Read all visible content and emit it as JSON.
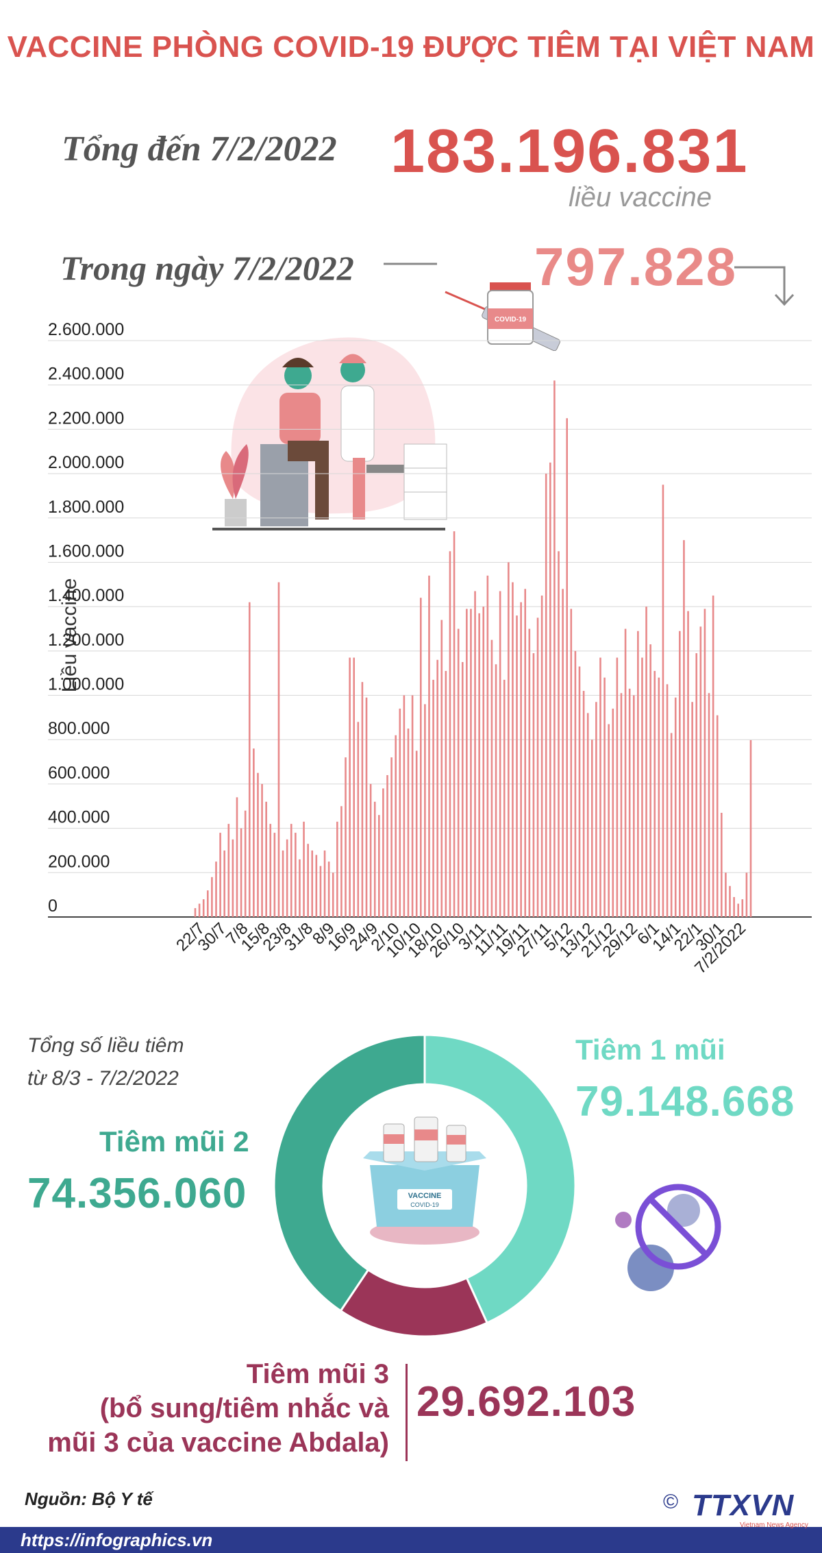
{
  "header": {
    "title": "VACCINE PHÒNG COVID-19 ĐƯỢC TIÊM TẠI VIỆT NAM",
    "total_label": "Tổng đến 7/2/2022",
    "total_value": "183.196.831",
    "total_unit": "liều vaccine",
    "day_label": "Trong ngày 7/2/2022",
    "day_value": "797.828"
  },
  "colors": {
    "title": "#d9534f",
    "bars": "#e8898a",
    "dose1": "#6fd9c4",
    "dose2": "#3ea990",
    "dose3": "#9b3558",
    "brand": "#2b3a8c"
  },
  "chart_data": {
    "type": "bar",
    "ylabel": "Liều vaccine",
    "ylim": [
      0,
      2600000
    ],
    "yticks": [
      "0",
      "200.000",
      "400.000",
      "600.000",
      "800.000",
      "1.000.000",
      "1.200.000",
      "1.400.000",
      "1.600.000",
      "1.800.000",
      "2.000.000",
      "2.200.000",
      "2.400.000",
      "2.600.000"
    ],
    "xticks": [
      "22/7",
      "30/7",
      "7/8",
      "15/8",
      "23/8",
      "31/8",
      "8/9",
      "16/9",
      "24/9",
      "2/10",
      "10/10",
      "18/10",
      "26/10",
      "3/11",
      "11/11",
      "19/11",
      "27/11",
      "5/12",
      "13/12",
      "21/12",
      "29/12",
      "6/1",
      "14/1",
      "22/1",
      "30/1",
      "7/2/2022"
    ],
    "grid": true,
    "values": [
      40000,
      60000,
      80000,
      120000,
      180000,
      250000,
      380000,
      300000,
      420000,
      350000,
      540000,
      400000,
      480000,
      1420000,
      760000,
      650000,
      600000,
      520000,
      420000,
      380000,
      1510000,
      300000,
      350000,
      420000,
      380000,
      260000,
      430000,
      330000,
      300000,
      280000,
      230000,
      300000,
      250000,
      200000,
      430000,
      500000,
      720000,
      1170000,
      1170000,
      880000,
      1060000,
      990000,
      600000,
      520000,
      460000,
      580000,
      640000,
      720000,
      820000,
      940000,
      1000000,
      850000,
      1000000,
      750000,
      1440000,
      960000,
      1540000,
      1070000,
      1160000,
      1340000,
      1110000,
      1650000,
      1740000,
      1300000,
      1150000,
      1390000,
      1390000,
      1470000,
      1370000,
      1400000,
      1540000,
      1250000,
      1140000,
      1470000,
      1070000,
      1600000,
      1510000,
      1360000,
      1420000,
      1480000,
      1300000,
      1190000,
      1350000,
      1450000,
      2000000,
      2050000,
      2420000,
      1650000,
      1480000,
      2250000,
      1390000,
      1200000,
      1130000,
      1020000,
      920000,
      800000,
      970000,
      1170000,
      1080000,
      870000,
      940000,
      1170000,
      1010000,
      1300000,
      1030000,
      1000000,
      1290000,
      1170000,
      1400000,
      1230000,
      1110000,
      1080000,
      1950000,
      1050000,
      830000,
      990000,
      1290000,
      1700000,
      1380000,
      970000,
      1190000,
      1310000,
      1390000,
      1010000,
      1450000,
      910000,
      470000,
      200000,
      140000,
      90000,
      60000,
      80000,
      200000,
      797828
    ]
  },
  "donut": {
    "caption_line1": "Tổng số liều tiêm",
    "caption_line2": "từ 8/3 - 7/2/2022",
    "dose1_label": "Tiêm 1 mũi",
    "dose1_value": "79.148.668",
    "dose2_label": "Tiêm mũi 2",
    "dose2_value": "74.356.060",
    "dose3_label_1": "Tiêm mũi 3",
    "dose3_label_2": "(bổ sung/tiêm nhắc và",
    "dose3_label_3": "mũi 3 của vaccine Abdala)",
    "dose3_value": "29.692.103",
    "values": [
      79148668,
      74356060,
      29692103
    ],
    "box_label": "VACCINE",
    "box_sublabel": "COVID-19"
  },
  "footer": {
    "source": "Nguồn: Bộ Y tế",
    "link": "https://infographics.vn",
    "logo": "TTXVN",
    "logo_sub": "Vietnam News Agency",
    "copyright": "©"
  }
}
